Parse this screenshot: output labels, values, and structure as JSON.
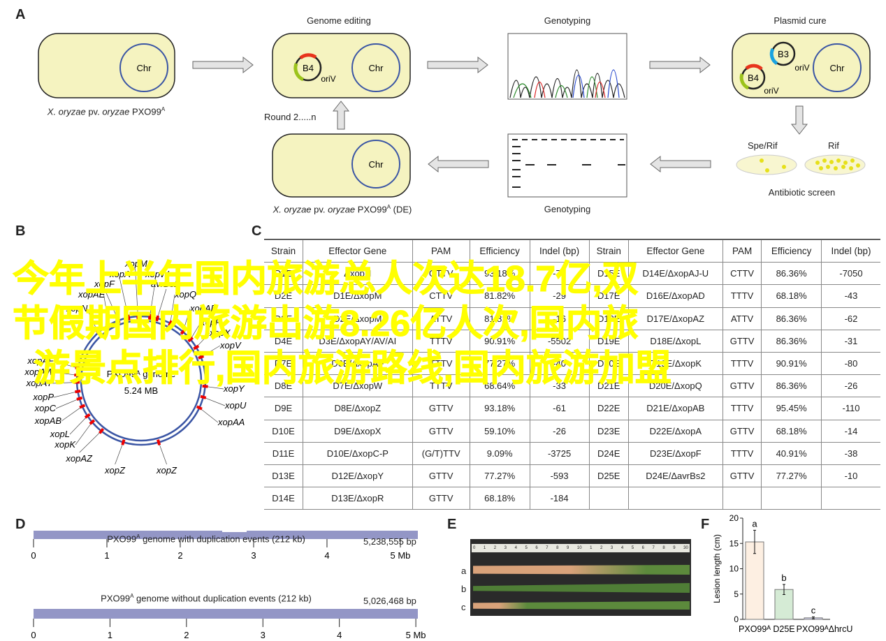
{
  "panels": {
    "a": "A",
    "b": "B",
    "c": "C",
    "d": "D",
    "e": "E",
    "f": "F"
  },
  "panelA": {
    "chr": "Chr",
    "b4": "B4",
    "b3": "B3",
    "oriv": "oriV",
    "strain_label": {
      "italic1": "X. oryzae",
      "mid": " pv. ",
      "italic2": "oryzae",
      "strain": " PXO99",
      "sup": "A"
    },
    "strain_label_de": {
      "suffix": " (DE)"
    },
    "genome_editing": "Genome editing",
    "genotyping": "Genotyping",
    "plasmid_cure": "Plasmid cure",
    "round": "Round 2.....n",
    "spe_rif": "Spe/Rif",
    "rif": "Rif",
    "antibiotic_screen": "Antibiotic screen",
    "colors": {
      "cell": "#f5f3c0",
      "chr": "#3a55a4",
      "red": "#e8341c",
      "green": "#9cc31c",
      "blue": "#1aa3e0"
    }
  },
  "panelB": {
    "genome": "PXO99ᴬ genome",
    "size": "5.24 MB",
    "labels": [
      "xopM",
      "xopA",
      "xopW",
      "xopF",
      "avrBs2",
      "xopAE",
      "xopQ",
      "xopN",
      "xopAD",
      "xopR",
      "xopX",
      "xopV",
      "xopAF",
      "xopAW",
      "xopAY",
      "xopP",
      "xopC",
      "xopAB",
      "xopL",
      "xopK",
      "xopAZ",
      "xopZ",
      "xopZ",
      "xopY",
      "xopU",
      "xopAA"
    ]
  },
  "table": {
    "headers": [
      "Strain",
      "Effector Gene",
      "PAM",
      "Efficiency",
      "Indel (bp)",
      "Strain",
      "Effector Gene",
      "PAM",
      "Efficiency",
      "Indel (bp)"
    ],
    "rows": [
      [
        [
          "D1E",
          "ΔxopN",
          "GTTV",
          "93.18%",
          "-77"
        ],
        [
          "D15E",
          "D14E/ΔxopAJ-U",
          "CTTV",
          "86.36%",
          "-7050"
        ]
      ],
      [
        [
          "D2E",
          "D1E/ΔxopM",
          "CTTV",
          "81.82%",
          "-29"
        ],
        [
          "D17E",
          "D16E/ΔxopAD",
          "TTTV",
          "68.18%",
          "-43"
        ]
      ],
      [
        [
          "D3E",
          "D2E/ΔxopM",
          "ATTV",
          "81.82%",
          "-16"
        ],
        [
          "D18E",
          "D17E/ΔxopAZ",
          "ATTV",
          "86.36%",
          "-62"
        ]
      ],
      [
        [
          "D4E",
          "D3E/ΔxopAY/AV/AI",
          "TTTV",
          "90.91%",
          "-5502"
        ],
        [
          "D19E",
          "D18E/ΔxopL",
          "GTTV",
          "86.36%",
          "-31"
        ]
      ],
      [
        [
          "D7E",
          "D6E/ΔxopAF",
          "TTTV",
          "77.27%",
          "-40"
        ],
        [
          "D20E",
          "D19E/ΔxopK",
          "TTTV",
          "90.91%",
          "-80"
        ]
      ],
      [
        [
          "D8E",
          "D7E/ΔxopW",
          "TTTV",
          "68.64%",
          "-33"
        ],
        [
          "D21E",
          "D20E/ΔxopQ",
          "GTTV",
          "86.36%",
          "-26"
        ]
      ],
      [
        [
          "D9E",
          "D8E/ΔxopZ",
          "GTTV",
          "93.18%",
          "-61"
        ],
        [
          "D22E",
          "D21E/ΔxopAB",
          "TTTV",
          "95.45%",
          "-110"
        ]
      ],
      [
        [
          "D10E",
          "D9E/ΔxopX",
          "GTTV",
          "59.10%",
          "-26"
        ],
        [
          "D23E",
          "D22E/ΔxopA",
          "GTTV",
          "68.18%",
          "-14"
        ]
      ],
      [
        [
          "D11E",
          "D10E/ΔxopC-P",
          "(G/T)TTV",
          "9.09%",
          "-3725"
        ],
        [
          "D24E",
          "D23E/ΔxopF",
          "TTTV",
          "40.91%",
          "-38"
        ]
      ],
      [
        [
          "D13E",
          "D12E/ΔxopY",
          "GTTV",
          "77.27%",
          "-593"
        ],
        [
          "D25E",
          "D24E/ΔavrBs2",
          "GTTV",
          "77.27%",
          "-10"
        ]
      ],
      [
        [
          "D14E",
          "D13E/ΔxopR",
          "GTTV",
          "68.18%",
          "-184"
        ],
        [
          "",
          "",
          "",
          "",
          ""
        ]
      ]
    ]
  },
  "panelD": {
    "track1": {
      "title_pre": "PXO99",
      "sup": "A",
      "title_post": " genome with duplication events (212 kb)",
      "length": "5,238,555 bp"
    },
    "track2": {
      "title_pre": "PXO99",
      "sup": "A",
      "title_post": " genome without duplication events (212 kb)",
      "length": "5,026,468 bp"
    },
    "ticks": [
      "0",
      "1",
      "2",
      "3",
      "4",
      "5 Mb"
    ],
    "color": "#9396c6"
  },
  "panelE": {
    "rows": [
      "a",
      "b",
      "c"
    ],
    "ruler": [
      "0",
      "1",
      "2",
      "3",
      "4",
      "5",
      "6",
      "7",
      "8",
      "9",
      "10",
      "1",
      "2",
      "3",
      "4",
      "5",
      "6",
      "7",
      "8",
      "9",
      "30"
    ]
  },
  "chart_data": {
    "type": "bar",
    "ylabel": "Lesion length (cm)",
    "ylim": [
      0,
      20
    ],
    "yticks": [
      "0",
      "5",
      "10",
      "15",
      "20"
    ],
    "categories": [
      "PXO99ᴬ",
      "D25E",
      "PXO99ᴬΔhrcU"
    ],
    "values": [
      15.3,
      5.9,
      0.3
    ],
    "errors": [
      2.3,
      1.0,
      0.2
    ],
    "letters": [
      "a",
      "b",
      "c"
    ],
    "colors": [
      "#fdefe2",
      "#d5ebd5",
      "#d6d6ef"
    ]
  },
  "overlay": {
    "lines": [
      "今年上半年国内旅游总人次达18.7亿,双",
      "节假期国内旅游出游8.26亿人次,国内旅",
      "游景点排行,国内旅游路线,国内旅游加盟"
    ]
  }
}
